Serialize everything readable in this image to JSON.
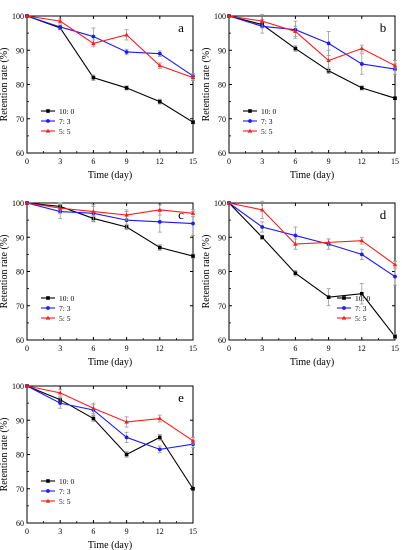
{
  "chart_data": [
    {
      "type": "line",
      "panel_label": "a",
      "x": [
        0,
        3,
        6,
        9,
        12,
        15
      ],
      "xlabel": "Time (day)",
      "ylabel": "Retention rate (%)",
      "xlim": [
        0,
        15
      ],
      "ylim": [
        60,
        100
      ],
      "xticks": [
        0,
        3,
        6,
        9,
        12,
        15
      ],
      "yticks": [
        60,
        70,
        80,
        90,
        100
      ],
      "legend_position": "bottom-left",
      "series": [
        {
          "name": "10: 0",
          "color": "#000000",
          "marker": "square",
          "values": [
            100,
            96.5,
            82,
            79,
            75,
            69
          ],
          "errors": [
            0,
            0.5,
            0.8,
            0.6,
            0.7,
            0.5
          ]
        },
        {
          "name": "7: 3",
          "color": "#1a1aff",
          "marker": "circle",
          "values": [
            100,
            96.8,
            94,
            89.5,
            89,
            82.5
          ],
          "errors": [
            0,
            0.6,
            2.5,
            0.8,
            0.8,
            0.7
          ]
        },
        {
          "name": "5: 5",
          "color": "#ff1a1a",
          "marker": "triangle",
          "values": [
            100,
            98.5,
            92,
            94.5,
            85.5,
            82
          ],
          "errors": [
            0,
            0.6,
            1.0,
            1.5,
            0.8,
            0.8
          ]
        }
      ]
    },
    {
      "type": "line",
      "panel_label": "b",
      "x": [
        0,
        3,
        6,
        9,
        12,
        15
      ],
      "xlabel": "Time (day)",
      "ylabel": "Retention rate (%)",
      "xlim": [
        0,
        15
      ],
      "ylim": [
        60,
        100
      ],
      "xticks": [
        0,
        3,
        6,
        9,
        12,
        15
      ],
      "yticks": [
        60,
        70,
        80,
        90,
        100
      ],
      "legend_position": "bottom-left",
      "series": [
        {
          "name": "10: 0",
          "color": "#000000",
          "marker": "square",
          "values": [
            100,
            97.5,
            90.5,
            84,
            79,
            76
          ],
          "errors": [
            0,
            0.5,
            0.8,
            0.8,
            0.6,
            0.4
          ]
        },
        {
          "name": "7: 3",
          "color": "#1a1aff",
          "marker": "circle",
          "values": [
            100,
            97,
            96,
            92,
            86,
            84.5
          ],
          "errors": [
            0,
            2.0,
            2.5,
            3.5,
            3.0,
            1.5
          ]
        },
        {
          "name": "5: 5",
          "color": "#ff1a1a",
          "marker": "triangle",
          "values": [
            100,
            98.5,
            95.5,
            87,
            90.5,
            85.5
          ],
          "errors": [
            0,
            2.0,
            1.5,
            3.0,
            1.0,
            1.5
          ]
        }
      ]
    },
    {
      "type": "line",
      "panel_label": "c",
      "x": [
        0,
        3,
        6,
        9,
        12,
        15
      ],
      "xlabel": "Time (day)",
      "ylabel": "Retention rate (%)",
      "xlim": [
        0,
        15
      ],
      "ylim": [
        60,
        100
      ],
      "xticks": [
        0,
        3,
        6,
        9,
        12,
        15
      ],
      "yticks": [
        60,
        70,
        80,
        90,
        100
      ],
      "legend_position": "bottom-left",
      "series": [
        {
          "name": "10: 0",
          "color": "#000000",
          "marker": "square",
          "values": [
            100,
            99,
            95.5,
            93,
            87,
            84.5
          ],
          "errors": [
            0,
            0.6,
            0.8,
            0.8,
            0.8,
            0.6
          ]
        },
        {
          "name": "7: 3",
          "color": "#1a1aff",
          "marker": "circle",
          "values": [
            100,
            97.5,
            97,
            95,
            94.5,
            94
          ],
          "errors": [
            0,
            2.0,
            2.5,
            2.5,
            3.0,
            3.5
          ]
        },
        {
          "name": "5: 5",
          "color": "#ff1a1a",
          "marker": "triangle",
          "values": [
            100,
            98.5,
            97.5,
            96.5,
            98,
            97
          ],
          "errors": [
            0,
            1.5,
            1.5,
            1.5,
            1.5,
            1.0
          ]
        }
      ]
    },
    {
      "type": "line",
      "panel_label": "d",
      "x": [
        0,
        3,
        6,
        9,
        12,
        15
      ],
      "xlabel": "Time (day)",
      "ylabel": "Retention rate (%)",
      "xlim": [
        0,
        15
      ],
      "ylim": [
        60,
        100
      ],
      "xticks": [
        0,
        3,
        6,
        9,
        12,
        15
      ],
      "yticks": [
        60,
        70,
        80,
        90,
        100
      ],
      "legend_position": "bottom-right",
      "series": [
        {
          "name": "10: 0",
          "color": "#000000",
          "marker": "square",
          "values": [
            100,
            90,
            79.5,
            72.5,
            73.5,
            61
          ],
          "errors": [
            0,
            0.6,
            0.8,
            2.5,
            3.0,
            0.6
          ]
        },
        {
          "name": "7: 3",
          "color": "#1a1aff",
          "marker": "circle",
          "values": [
            100,
            93,
            90.5,
            88,
            85,
            78.5
          ],
          "errors": [
            0,
            1.5,
            2.5,
            1.5,
            1.5,
            2.5
          ]
        },
        {
          "name": "5: 5",
          "color": "#ff1a1a",
          "marker": "triangle",
          "values": [
            100,
            98,
            88,
            88.5,
            89,
            82
          ],
          "errors": [
            0,
            2.5,
            1.5,
            1.0,
            1.0,
            1.0
          ]
        }
      ]
    },
    {
      "type": "line",
      "panel_label": "e",
      "x": [
        0,
        3,
        6,
        9,
        12,
        15
      ],
      "xlabel": "Time (day)",
      "ylabel": "Retention rate (%)",
      "xlim": [
        0,
        15
      ],
      "ylim": [
        60,
        100
      ],
      "xticks": [
        0,
        3,
        6,
        9,
        12,
        15
      ],
      "yticks": [
        60,
        70,
        80,
        90,
        100
      ],
      "legend_position": "bottom-left",
      "series": [
        {
          "name": "10: 0",
          "color": "#000000",
          "marker": "square",
          "values": [
            100,
            96,
            90.5,
            80,
            85,
            70
          ],
          "errors": [
            0,
            0.6,
            0.8,
            0.8,
            0.8,
            0.4
          ]
        },
        {
          "name": "7: 3",
          "color": "#1a1aff",
          "marker": "circle",
          "values": [
            100,
            95,
            93,
            85,
            81.5,
            83
          ],
          "errors": [
            0,
            1.5,
            1.5,
            1.5,
            1.0,
            1.0
          ]
        },
        {
          "name": "5: 5",
          "color": "#ff1a1a",
          "marker": "triangle",
          "values": [
            100,
            98,
            93.5,
            89.5,
            90.5,
            84
          ],
          "errors": [
            0,
            1.0,
            1.5,
            1.5,
            1.0,
            1.0
          ]
        }
      ]
    }
  ]
}
